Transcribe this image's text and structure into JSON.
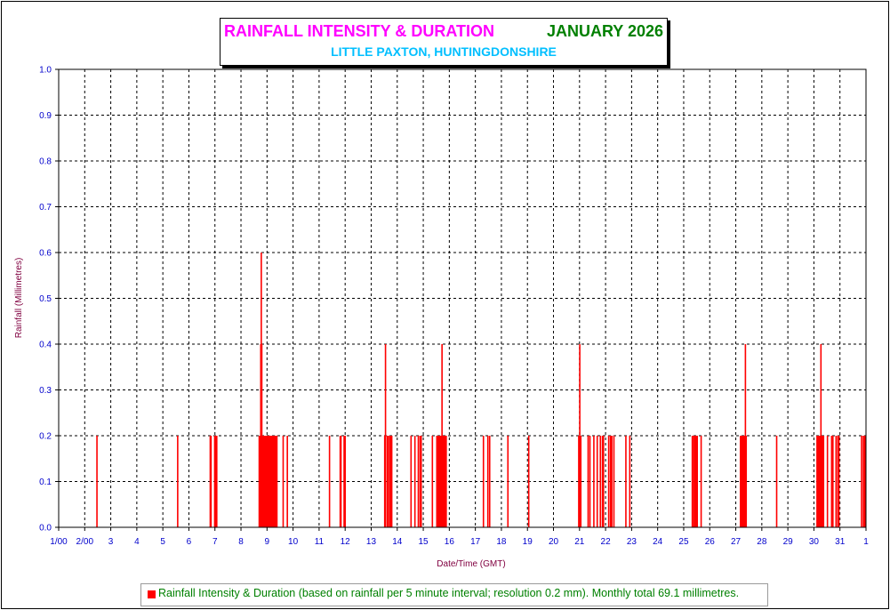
{
  "colors": {
    "title": "#ff00ff",
    "month": "#008000",
    "location": "#00bfff",
    "series": "#ff0000",
    "ticks": "#0000cc",
    "axis_title": "#800040",
    "legend_text": "#008000"
  },
  "chart_data": {
    "type": "bar",
    "title": "RAINFALL INTENSITY & DURATION",
    "title_month": "JANUARY 2026",
    "subtitle": "LITTLE PAXTON, HUNTINGDONSHIRE",
    "xlabel": "Date/Time (GMT)",
    "ylabel": "Rainfall (Millimetres)",
    "ylim": [
      0,
      1.0
    ],
    "xlim": [
      1,
      32
    ],
    "grid": true,
    "legend_position": "bottom",
    "xtick_labels": [
      "1/00",
      "2/00",
      "3",
      "4",
      "5",
      "6",
      "7",
      "8",
      "9",
      "10",
      "11",
      "12",
      "13",
      "14",
      "15",
      "16",
      "17",
      "18",
      "19",
      "20",
      "21",
      "22",
      "23",
      "24",
      "25",
      "26",
      "27",
      "28",
      "29",
      "30",
      "31",
      "1"
    ],
    "ytick_labels": [
      "0.0",
      "0.1",
      "0.2",
      "0.3",
      "0.4",
      "0.5",
      "0.6",
      "0.7",
      "0.8",
      "0.9",
      "1.0"
    ],
    "series": [
      {
        "name": "Rainfall Intensity & Duration (based on rainfall per 5 minute interval; resolution 0.2 mm). Monthly total 69.1 millimetres.",
        "points": [
          [
            2.47,
            0.2
          ],
          [
            5.57,
            0.2
          ],
          [
            6.82,
            0.2
          ],
          [
            6.85,
            0.2
          ],
          [
            6.99,
            0.2
          ],
          [
            7.03,
            0.2
          ],
          [
            7.07,
            0.2
          ],
          [
            8.7,
            0.2
          ],
          [
            8.72,
            0.2
          ],
          [
            8.74,
            0.2
          ],
          [
            8.76,
            0.4
          ],
          [
            8.78,
            0.6
          ],
          [
            8.8,
            0.4
          ],
          [
            8.82,
            0.2
          ],
          [
            8.84,
            0.2
          ],
          [
            8.86,
            0.2
          ],
          [
            8.88,
            0.2
          ],
          [
            8.9,
            0.2
          ],
          [
            8.92,
            0.2
          ],
          [
            8.94,
            0.2
          ],
          [
            8.96,
            0.2
          ],
          [
            8.98,
            0.2
          ],
          [
            9.0,
            0.2
          ],
          [
            9.02,
            0.2
          ],
          [
            9.04,
            0.2
          ],
          [
            9.06,
            0.2
          ],
          [
            9.08,
            0.2
          ],
          [
            9.1,
            0.2
          ],
          [
            9.12,
            0.2
          ],
          [
            9.14,
            0.2
          ],
          [
            9.16,
            0.2
          ],
          [
            9.18,
            0.2
          ],
          [
            9.2,
            0.2
          ],
          [
            9.22,
            0.2
          ],
          [
            9.24,
            0.2
          ],
          [
            9.26,
            0.2
          ],
          [
            9.28,
            0.2
          ],
          [
            9.3,
            0.2
          ],
          [
            9.32,
            0.2
          ],
          [
            9.34,
            0.2
          ],
          [
            9.36,
            0.2
          ],
          [
            9.38,
            0.2
          ],
          [
            9.62,
            0.2
          ],
          [
            9.78,
            0.2
          ],
          [
            11.4,
            0.2
          ],
          [
            11.81,
            0.2
          ],
          [
            11.84,
            0.2
          ],
          [
            11.96,
            0.2
          ],
          [
            12.0,
            0.2
          ],
          [
            13.52,
            0.2
          ],
          [
            13.55,
            0.4
          ],
          [
            13.62,
            0.2
          ],
          [
            13.66,
            0.2
          ],
          [
            13.72,
            0.2
          ],
          [
            13.75,
            0.2
          ],
          [
            13.79,
            0.2
          ],
          [
            14.53,
            0.2
          ],
          [
            14.68,
            0.2
          ],
          [
            14.81,
            0.2
          ],
          [
            14.88,
            0.2
          ],
          [
            14.92,
            0.2
          ],
          [
            15.35,
            0.2
          ],
          [
            15.52,
            0.2
          ],
          [
            15.55,
            0.2
          ],
          [
            15.58,
            0.2
          ],
          [
            15.6,
            0.2
          ],
          [
            15.62,
            0.2
          ],
          [
            15.64,
            0.2
          ],
          [
            15.66,
            0.2
          ],
          [
            15.68,
            0.2
          ],
          [
            15.7,
            0.2
          ],
          [
            15.72,
            0.4
          ],
          [
            15.74,
            0.2
          ],
          [
            15.76,
            0.2
          ],
          [
            15.78,
            0.2
          ],
          [
            15.8,
            0.2
          ],
          [
            15.82,
            0.2
          ],
          [
            15.84,
            0.2
          ],
          [
            15.86,
            0.2
          ],
          [
            15.88,
            0.2
          ],
          [
            17.31,
            0.2
          ],
          [
            17.48,
            0.2
          ],
          [
            17.55,
            0.2
          ],
          [
            18.25,
            0.2
          ],
          [
            19.05,
            0.2
          ],
          [
            20.97,
            0.2
          ],
          [
            21.01,
            0.4
          ],
          [
            21.05,
            0.2
          ],
          [
            21.33,
            0.2
          ],
          [
            21.4,
            0.2
          ],
          [
            21.55,
            0.2
          ],
          [
            21.68,
            0.2
          ],
          [
            21.8,
            0.2
          ],
          [
            21.88,
            0.2
          ],
          [
            21.92,
            0.2
          ],
          [
            22.12,
            0.2
          ],
          [
            22.19,
            0.2
          ],
          [
            22.24,
            0.2
          ],
          [
            22.32,
            0.2
          ],
          [
            22.78,
            0.2
          ],
          [
            22.93,
            0.2
          ],
          [
            25.33,
            0.2
          ],
          [
            25.38,
            0.2
          ],
          [
            25.43,
            0.2
          ],
          [
            25.47,
            0.2
          ],
          [
            25.52,
            0.2
          ],
          [
            25.67,
            0.2
          ],
          [
            27.18,
            0.2
          ],
          [
            27.2,
            0.2
          ],
          [
            27.22,
            0.2
          ],
          [
            27.24,
            0.2
          ],
          [
            27.26,
            0.2
          ],
          [
            27.28,
            0.2
          ],
          [
            27.3,
            0.2
          ],
          [
            27.32,
            0.2
          ],
          [
            27.34,
            0.2
          ],
          [
            27.37,
            0.4
          ],
          [
            27.4,
            0.2
          ],
          [
            28.57,
            0.2
          ],
          [
            30.12,
            0.2
          ],
          [
            30.15,
            0.2
          ],
          [
            30.18,
            0.2
          ],
          [
            30.21,
            0.2
          ],
          [
            30.24,
            0.2
          ],
          [
            30.27,
            0.4
          ],
          [
            30.3,
            0.2
          ],
          [
            30.33,
            0.2
          ],
          [
            30.37,
            0.2
          ],
          [
            30.52,
            0.2
          ],
          [
            30.68,
            0.2
          ],
          [
            30.73,
            0.2
          ],
          [
            30.85,
            0.2
          ],
          [
            30.92,
            0.2
          ],
          [
            30.96,
            0.2
          ],
          [
            31.83,
            0.2
          ],
          [
            31.9,
            0.2
          ],
          [
            31.94,
            0.2
          ],
          [
            31.97,
            0.2
          ]
        ]
      }
    ]
  }
}
